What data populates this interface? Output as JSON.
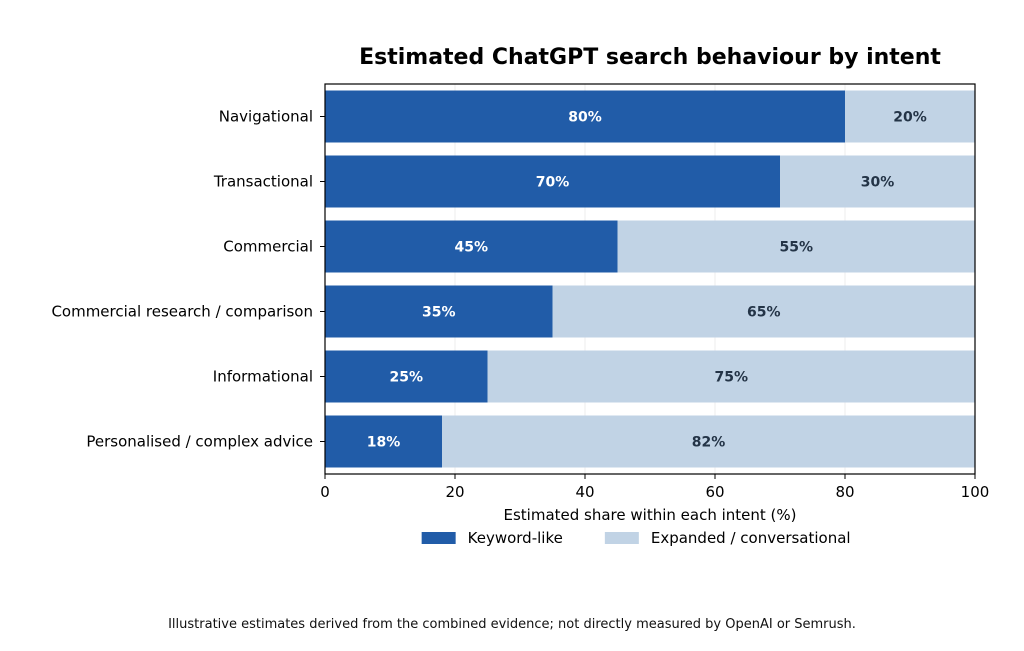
{
  "chart_data": {
    "type": "bar",
    "orientation": "horizontal",
    "stacked": true,
    "title": "Estimated ChatGPT search behaviour by intent",
    "xlabel": "Estimated share within each intent (%)",
    "ylabel": "",
    "xlim": [
      0,
      100
    ],
    "xticks": [
      "0",
      "20",
      "40",
      "60",
      "80",
      "100"
    ],
    "categories": [
      "Navigational",
      "Transactional",
      "Commercial",
      "Commercial research / comparison",
      "Informational",
      "Personalised / complex advice"
    ],
    "series": [
      {
        "name": "Keyword-like",
        "color": "#215ca8",
        "values": [
          80,
          70,
          45,
          35,
          25,
          18
        ],
        "labels": [
          "80%",
          "70%",
          "45%",
          "35%",
          "25%",
          "18%"
        ]
      },
      {
        "name": "Expanded / conversational",
        "color": "#c1d3e5",
        "values": [
          20,
          30,
          55,
          65,
          75,
          82
        ],
        "labels": [
          "20%",
          "30%",
          "55%",
          "65%",
          "75%",
          "82%"
        ]
      }
    ],
    "grid": "vertical",
    "legend_position": "bottom-center"
  },
  "footnote": "Illustrative estimates derived from the combined evidence; not directly measured by OpenAI or Semrush."
}
